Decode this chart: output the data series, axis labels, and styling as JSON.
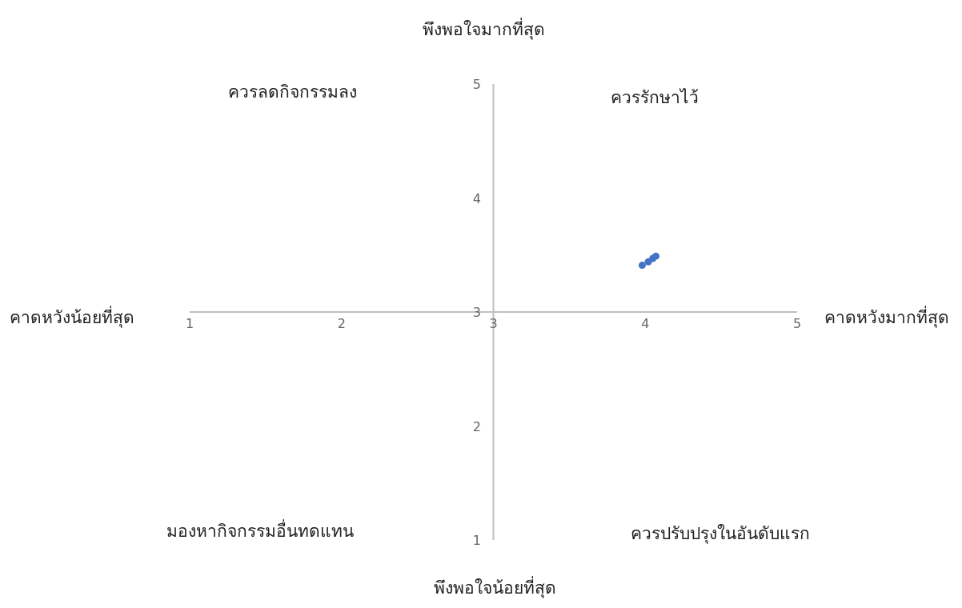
{
  "chart_data": {
    "type": "scatter",
    "x": [
      3.98,
      4.02,
      4.05,
      4.07
    ],
    "values": [
      3.41,
      3.44,
      3.47,
      3.49
    ],
    "color": "#4472c4",
    "marker": "circle",
    "xlim": [
      1,
      5
    ],
    "xticks": [
      1,
      2,
      3,
      4,
      5
    ],
    "ylim": [
      1,
      5
    ],
    "yticks": [
      1,
      2,
      3,
      4,
      5
    ],
    "annotations": [
      "พึงพอใจมากที่สุด",
      "พึงพอใจน้อยที่สุด",
      "คาดหวังน้อยที่สุด",
      "คาดหวังมากที่สุด",
      "ควรลดกิจกรรมลง",
      "ควรรักษาไว้",
      "มองหากิจกรรมอื่นทดแทน",
      "ควรปรับปรุงในอันดับแรก"
    ]
  }
}
